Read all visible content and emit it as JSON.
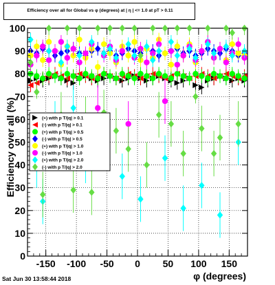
{
  "chart_data": {
    "type": "scatter",
    "title": "Efficiency over all for Global vs φ (degrees) at | η | <= 1.0 at pT > 0.11",
    "xlabel": "φ (degrees)",
    "ylabel": "Efficiency over all (%)",
    "xlim": [
      -180,
      180
    ],
    "ylim": [
      0,
      100
    ],
    "x_ticks": [
      -150,
      -100,
      -50,
      0,
      50,
      100,
      150
    ],
    "y_ticks": [
      0,
      10,
      20,
      30,
      40,
      50,
      60,
      70,
      80,
      90,
      100
    ],
    "grid": true,
    "legend_position": "left-middle",
    "series": [
      {
        "name": "(+) with p T/|q| > 0.1",
        "color": "#000000",
        "marker": "triangle-right",
        "points": [
          [
            -175,
            77
          ],
          [
            -165,
            78
          ],
          [
            -155,
            77
          ],
          [
            -145,
            78
          ],
          [
            -135,
            79
          ],
          [
            -125,
            78
          ],
          [
            -115,
            77
          ],
          [
            -105,
            76
          ],
          [
            -95,
            78
          ],
          [
            -85,
            79
          ],
          [
            -75,
            78
          ],
          [
            -65,
            77
          ],
          [
            -55,
            78
          ],
          [
            -45,
            79
          ],
          [
            -35,
            78
          ],
          [
            -25,
            77
          ],
          [
            -15,
            78
          ],
          [
            -5,
            79
          ],
          [
            5,
            78
          ],
          [
            15,
            77
          ],
          [
            25,
            78
          ],
          [
            35,
            79
          ],
          [
            45,
            78
          ],
          [
            55,
            77
          ],
          [
            65,
            76
          ],
          [
            75,
            77
          ],
          [
            85,
            78
          ],
          [
            95,
            75
          ],
          [
            105,
            74
          ],
          [
            115,
            77
          ],
          [
            125,
            78
          ],
          [
            135,
            79
          ],
          [
            145,
            78
          ],
          [
            155,
            77
          ],
          [
            165,
            78
          ],
          [
            175,
            77
          ]
        ]
      },
      {
        "name": "(-) with p T/|q| > 0.1",
        "color": "#ff0000",
        "marker": "triangle-left",
        "points": [
          [
            -175,
            75
          ],
          [
            -165,
            76
          ],
          [
            -155,
            78
          ],
          [
            -145,
            79
          ],
          [
            -135,
            80
          ],
          [
            -125,
            79
          ],
          [
            -115,
            78
          ],
          [
            -105,
            79
          ],
          [
            -95,
            80
          ],
          [
            -85,
            79
          ],
          [
            -75,
            78
          ],
          [
            -65,
            79
          ],
          [
            -55,
            80
          ],
          [
            -45,
            79
          ],
          [
            -35,
            78
          ],
          [
            -25,
            79
          ],
          [
            -15,
            80
          ],
          [
            -5,
            79
          ],
          [
            5,
            78
          ],
          [
            15,
            79
          ],
          [
            25,
            80
          ],
          [
            35,
            79
          ],
          [
            45,
            78
          ],
          [
            55,
            79
          ],
          [
            65,
            80
          ],
          [
            75,
            79
          ],
          [
            85,
            78
          ],
          [
            95,
            79
          ],
          [
            105,
            80
          ],
          [
            115,
            79
          ],
          [
            125,
            78
          ],
          [
            135,
            79
          ],
          [
            145,
            80
          ],
          [
            155,
            79
          ],
          [
            165,
            78
          ],
          [
            175,
            79
          ]
        ]
      },
      {
        "name": "(+) with p T/|q| > 0.5",
        "color": "#00ff00",
        "marker": "circle",
        "points": [
          [
            -175,
            80
          ],
          [
            -165,
            79
          ],
          [
            -155,
            78
          ],
          [
            -145,
            80
          ],
          [
            -135,
            79
          ],
          [
            -125,
            78
          ],
          [
            -115,
            80
          ],
          [
            -105,
            79
          ],
          [
            -95,
            78
          ],
          [
            -85,
            80
          ],
          [
            -75,
            79
          ],
          [
            -65,
            78
          ],
          [
            -55,
            80
          ],
          [
            -45,
            79
          ],
          [
            -35,
            78
          ],
          [
            -25,
            80
          ],
          [
            -15,
            79
          ],
          [
            -5,
            78
          ],
          [
            5,
            80
          ],
          [
            15,
            79
          ],
          [
            25,
            78
          ],
          [
            35,
            80
          ],
          [
            45,
            79
          ],
          [
            55,
            78
          ],
          [
            65,
            80
          ],
          [
            75,
            79
          ],
          [
            85,
            78
          ],
          [
            95,
            80
          ],
          [
            105,
            79
          ],
          [
            115,
            78
          ],
          [
            125,
            80
          ],
          [
            135,
            79
          ],
          [
            145,
            78
          ],
          [
            155,
            80
          ],
          [
            165,
            79
          ],
          [
            175,
            78
          ]
        ]
      },
      {
        "name": "(-) with p T/|q| > 0.5",
        "color": "#0000ff",
        "marker": "diamond",
        "points": [
          [
            -175,
            90
          ],
          [
            -165,
            89
          ],
          [
            -155,
            91
          ],
          [
            -145,
            90
          ],
          [
            -135,
            88
          ],
          [
            -125,
            89
          ],
          [
            -115,
            90
          ],
          [
            -105,
            91
          ],
          [
            -95,
            89
          ],
          [
            -85,
            88
          ],
          [
            -75,
            90
          ],
          [
            -65,
            91
          ],
          [
            -55,
            89
          ],
          [
            -45,
            90
          ],
          [
            -35,
            88
          ],
          [
            -25,
            89
          ],
          [
            -15,
            91
          ],
          [
            -5,
            90
          ],
          [
            5,
            89
          ],
          [
            15,
            91
          ],
          [
            25,
            90
          ],
          [
            35,
            88
          ],
          [
            45,
            89
          ],
          [
            55,
            90
          ],
          [
            65,
            91
          ],
          [
            75,
            89
          ],
          [
            85,
            90
          ],
          [
            95,
            88
          ],
          [
            105,
            89
          ],
          [
            115,
            91
          ],
          [
            125,
            90
          ],
          [
            135,
            89
          ],
          [
            145,
            91
          ],
          [
            155,
            90
          ],
          [
            165,
            88
          ],
          [
            175,
            89
          ]
        ]
      },
      {
        "name": "(+) with p T/|q| > 1.0",
        "color": "#ffff00",
        "marker": "circle",
        "points": [
          [
            -175,
            88
          ],
          [
            -165,
            92
          ],
          [
            -155,
            86
          ],
          [
            -145,
            94
          ],
          [
            -135,
            90
          ],
          [
            -125,
            84
          ],
          [
            -115,
            92
          ],
          [
            -105,
            88
          ],
          [
            -95,
            95
          ],
          [
            -85,
            87
          ],
          [
            -75,
            91
          ],
          [
            -65,
            83
          ],
          [
            -55,
            93
          ],
          [
            -45,
            89
          ],
          [
            -35,
            85
          ],
          [
            -25,
            92
          ],
          [
            -15,
            88
          ],
          [
            -5,
            94
          ],
          [
            5,
            86
          ],
          [
            15,
            91
          ],
          [
            25,
            87
          ],
          [
            35,
            95
          ],
          [
            45,
            89
          ],
          [
            55,
            84
          ],
          [
            65,
            92
          ],
          [
            75,
            88
          ],
          [
            85,
            93
          ],
          [
            95,
            85
          ],
          [
            105,
            90
          ],
          [
            115,
            94
          ],
          [
            125,
            87
          ],
          [
            135,
            91
          ],
          [
            145,
            86
          ],
          [
            155,
            93
          ],
          [
            165,
            89
          ],
          [
            175,
            88
          ]
        ]
      },
      {
        "name": "(-) with p T/|q| > 1.0",
        "color": "#ff00ff",
        "marker": "circle",
        "points": [
          [
            -175,
            84
          ],
          [
            -165,
            88
          ],
          [
            -155,
            92
          ],
          [
            -145,
            86
          ],
          [
            -135,
            90
          ],
          [
            -125,
            94
          ],
          [
            -115,
            87
          ],
          [
            -105,
            91
          ],
          [
            -95,
            85
          ],
          [
            -85,
            89
          ],
          [
            -75,
            93
          ],
          [
            -65,
            65
          ],
          [
            -55,
            88
          ],
          [
            -45,
            92
          ],
          [
            -35,
            86
          ],
          [
            -25,
            90
          ],
          [
            -15,
            58
          ],
          [
            -5,
            87
          ],
          [
            5,
            91
          ],
          [
            15,
            85
          ],
          [
            25,
            89
          ],
          [
            35,
            93
          ],
          [
            45,
            68
          ],
          [
            55,
            90
          ],
          [
            65,
            84
          ],
          [
            75,
            88
          ],
          [
            85,
            92
          ],
          [
            95,
            86
          ],
          [
            105,
            90
          ],
          [
            115,
            94
          ],
          [
            125,
            87
          ],
          [
            135,
            91
          ],
          [
            145,
            85
          ],
          [
            155,
            89
          ],
          [
            165,
            93
          ],
          [
            175,
            87
          ]
        ]
      },
      {
        "name": "(+) with p T/|q| > 2.0",
        "color": "#00ffff",
        "marker": "diamond",
        "points": [
          [
            -175,
            95
          ],
          [
            -165,
            40
          ],
          [
            -155,
            24
          ],
          [
            -145,
            90
          ],
          [
            -135,
            58
          ],
          [
            -125,
            85
          ],
          [
            -115,
            92
          ],
          [
            -105,
            65
          ],
          [
            -95,
            88
          ],
          [
            -85,
            42
          ],
          [
            -75,
            94
          ],
          [
            -65,
            52
          ],
          [
            -55,
            89
          ],
          [
            -45,
            91
          ],
          [
            -35,
            87
          ],
          [
            -25,
            35
          ],
          [
            -15,
            93
          ],
          [
            -5,
            88
          ],
          [
            5,
            25
          ],
          [
            15,
            92
          ],
          [
            25,
            86
          ],
          [
            35,
            90
          ],
          [
            45,
            43
          ],
          [
            55,
            94
          ],
          [
            65,
            88
          ],
          [
            75,
            21
          ],
          [
            85,
            91
          ],
          [
            95,
            87
          ],
          [
            105,
            31
          ],
          [
            115,
            93
          ],
          [
            125,
            89
          ],
          [
            135,
            18
          ],
          [
            145,
            92
          ],
          [
            155,
            88
          ],
          [
            165,
            50
          ],
          [
            175,
            90
          ]
        ]
      },
      {
        "name": "(-) with p T/|q| > 2.0",
        "color": "#66dd44",
        "marker": "diamond",
        "points": [
          [
            -175,
            85
          ],
          [
            -165,
            72
          ],
          [
            -155,
            27
          ],
          [
            -145,
            100
          ],
          [
            -135,
            53
          ],
          [
            -125,
            62
          ],
          [
            -115,
            100
          ],
          [
            -105,
            29
          ],
          [
            -95,
            100
          ],
          [
            -85,
            60
          ],
          [
            -75,
            28
          ],
          [
            -65,
            100
          ],
          [
            -55,
            63
          ],
          [
            -45,
            100
          ],
          [
            -35,
            55
          ],
          [
            -25,
            100
          ],
          [
            -15,
            47
          ],
          [
            -5,
            100
          ],
          [
            5,
            88
          ],
          [
            15,
            40
          ],
          [
            25,
            100
          ],
          [
            35,
            62
          ],
          [
            45,
            100
          ],
          [
            55,
            58
          ],
          [
            65,
            100
          ],
          [
            75,
            45
          ],
          [
            85,
            100
          ],
          [
            95,
            70
          ],
          [
            105,
            56
          ],
          [
            115,
            100
          ],
          [
            125,
            45
          ],
          [
            135,
            52
          ],
          [
            145,
            100
          ],
          [
            155,
            98
          ],
          [
            165,
            58
          ],
          [
            175,
            100
          ]
        ]
      }
    ]
  },
  "footer_text": "Sat Jun 30 13:58:44 2018"
}
